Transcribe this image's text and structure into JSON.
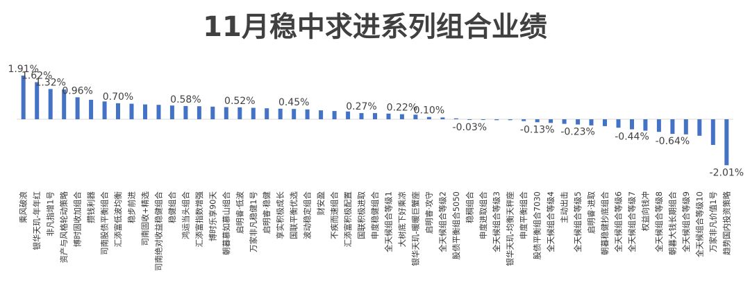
{
  "title": "11月稳中求进系列组合业绩",
  "chart_data": {
    "type": "bar",
    "title": "11月稳中求进系列组合业绩",
    "xlabel": "",
    "ylabel": "",
    "ylim": [
      -2.2,
      2.0
    ],
    "grid": false,
    "legend": "none",
    "bar_color": "#4472C4",
    "categories": [
      "乘风破浪",
      "银华天玑-年年红",
      "非凡指增1号",
      "资产与风格轮动策略",
      "博时固收加组合",
      "攒钱利器",
      "司南股债平衡组合",
      "汇添富低波均衡",
      "稳步前进",
      "司南固收+精选",
      "司南绝对收益稳健组合",
      "稳健组合",
      "鸿运当头组合",
      "汇添富指数增强",
      "博时乐享90天",
      "朝暮慕如慕山组合",
      "启明睿·低波",
      "万家非凡稳健1号",
      "启明睿·稳健",
      "享实积极成长",
      "国联平衡优选",
      "波动稳定组合",
      "财安盈",
      "不疾而速组合",
      "汇添富积极配置",
      "国联积极进取",
      "申度稳健组合",
      "全天候组合等级1",
      "大树底下好乘凉",
      "银华天玑-暖暖巨蟹座",
      "启明睿·攻守",
      "全天候组合等级2",
      "股债平衡组合5050",
      "稳稠组合",
      "申度进取组合",
      "全天候组合等级3",
      "银华天玑-均衡天秤座",
      "申度平衡组合",
      "股债平衡组合7030",
      "全天候组合等级4",
      "主动出击",
      "全天候组合等级5",
      "启明睿·进取",
      "朝暮稳健抄底组合",
      "全天候组合等级6",
      "全天候组合等级7",
      "权益向钱冲",
      "全天候组合等级8",
      "朝暮大钱长期组合",
      "全天候组合等级9",
      "全天候组合等级10",
      "万家非凡价值1号",
      "趋势国内投资策略"
    ],
    "values": [
      1.91,
      1.62,
      1.32,
      1.3,
      0.96,
      0.85,
      0.78,
      0.7,
      0.68,
      0.65,
      0.63,
      0.6,
      0.58,
      0.57,
      0.55,
      0.53,
      0.52,
      0.5,
      0.48,
      0.46,
      0.45,
      0.43,
      0.39,
      0.36,
      0.34,
      0.27,
      0.27,
      0.25,
      0.22,
      0.2,
      0.1,
      0.08,
      0.04,
      -0.03,
      -0.03,
      -0.04,
      -0.04,
      -0.08,
      -0.13,
      -0.16,
      -0.2,
      -0.23,
      -0.27,
      -0.3,
      -0.37,
      -0.44,
      -0.5,
      -0.55,
      -0.64,
      -0.66,
      -0.72,
      -1.12,
      -2.01
    ],
    "data_labels": [
      "1.91%",
      "1.62%",
      "1.32%",
      "",
      "0.96%",
      "",
      "",
      "0.70%",
      "",
      "",
      "",
      "",
      "0.58%",
      "",
      "",
      "",
      "0.52%",
      "",
      "",
      "",
      "0.45%",
      "",
      "",
      "",
      "",
      "0.27%",
      "",
      "",
      "0.22%",
      "",
      "0.10%",
      "",
      "",
      "-0.03%",
      "",
      "",
      "",
      "",
      "-0.13%",
      "",
      "",
      "-0.23%",
      "",
      "",
      "",
      "-0.44%",
      "",
      "",
      "-0.64%",
      "",
      "",
      "",
      "-2.01%"
    ]
  }
}
